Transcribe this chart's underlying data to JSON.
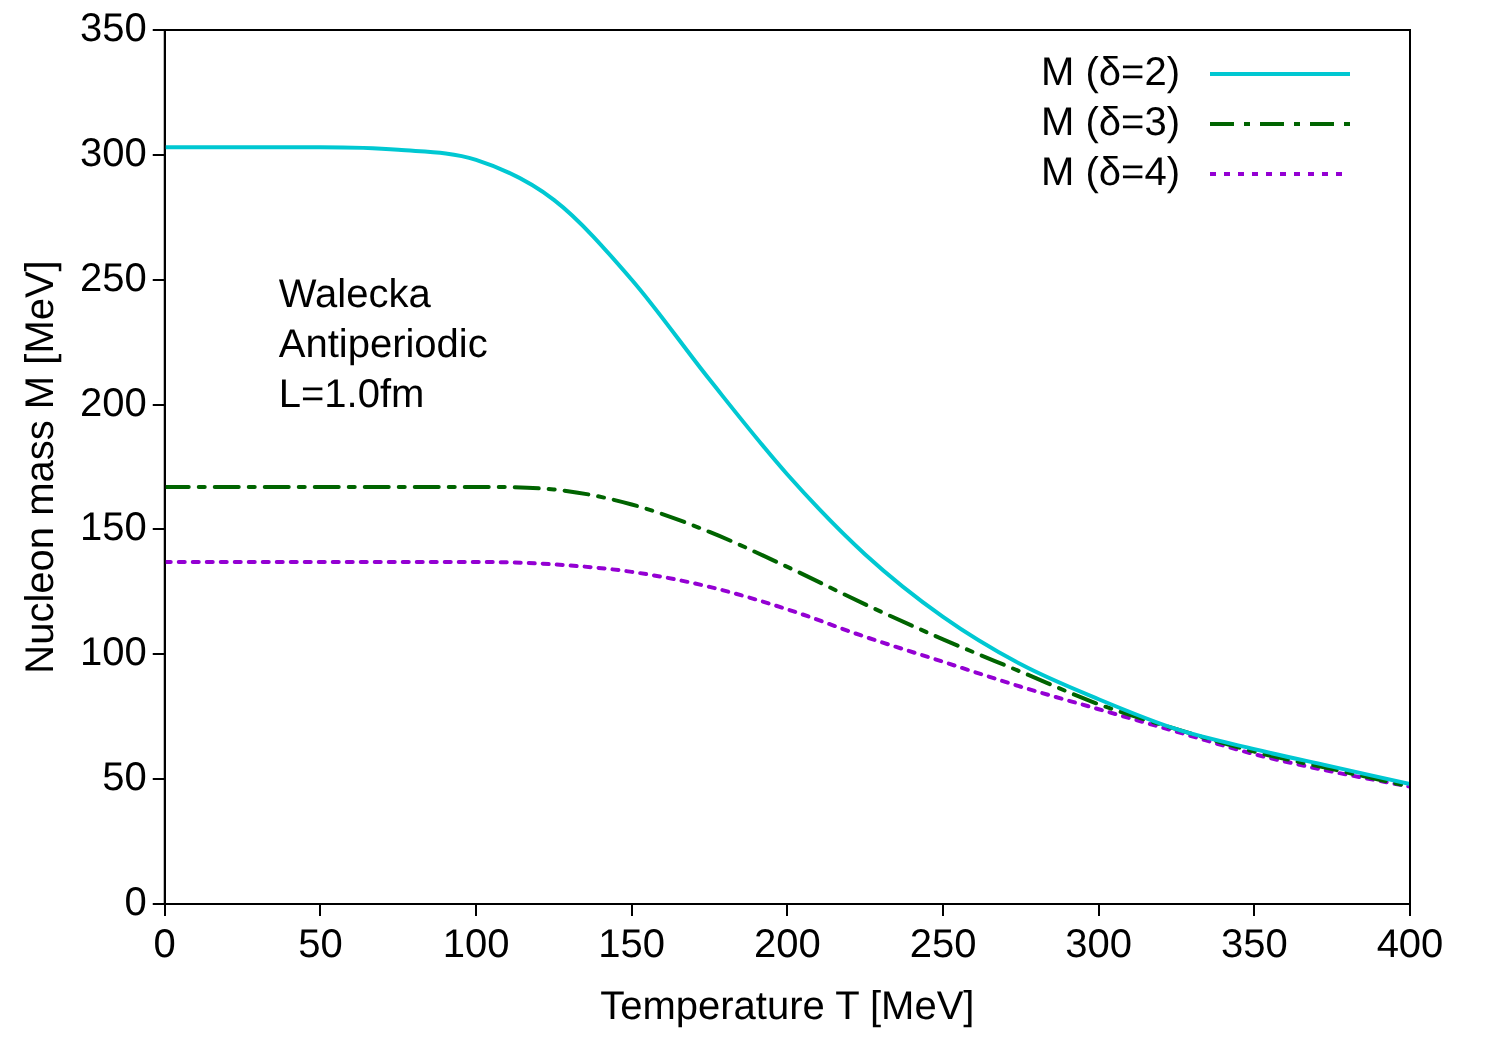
{
  "chart_data": {
    "type": "line",
    "xlabel": "Temperature T [MeV]",
    "ylabel": "Nucleon mass M [MeV]",
    "xlim": [
      0,
      400
    ],
    "xticks": [
      0,
      50,
      100,
      150,
      200,
      250,
      300,
      350,
      400
    ],
    "ylim": [
      0,
      350
    ],
    "yticks": [
      0,
      50,
      100,
      150,
      200,
      250,
      300,
      350
    ],
    "grid": false,
    "legend": "top right",
    "marker": "none",
    "annotations": [
      "Walecka",
      "Antiperiodic",
      "L=1.0fm"
    ],
    "x": [
      0,
      25,
      50,
      75,
      100,
      125,
      150,
      175,
      200,
      225,
      250,
      275,
      300,
      325,
      350,
      375,
      400
    ],
    "series": [
      {
        "name": "M (δ=2)",
        "color": "#00c8d2",
        "line_style": "solid",
        "values": [
          303,
          303,
          303,
          302,
          298,
          282,
          250,
          210,
          172,
          140,
          115,
          96,
          82,
          70,
          62,
          55,
          48
        ]
      },
      {
        "name": "M (δ=3)",
        "color": "#006400",
        "line_style": "dashdot",
        "values": [
          167,
          167,
          167,
          167,
          167,
          166,
          160,
          149,
          135,
          120,
          106,
          93,
          80,
          70,
          61,
          54,
          47
        ]
      },
      {
        "name": "M (δ=4)",
        "color": "#9400d3",
        "line_style": "dotted",
        "values": [
          137,
          137,
          137,
          137,
          137,
          136,
          133,
          127,
          118,
          107,
          97,
          87,
          78,
          69,
          60,
          53,
          47
        ]
      }
    ]
  }
}
